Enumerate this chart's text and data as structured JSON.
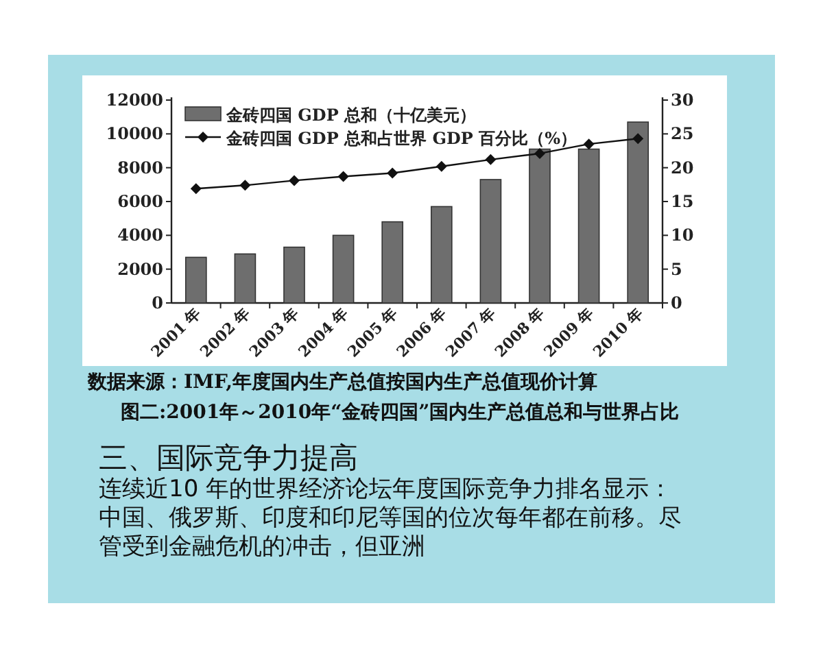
{
  "chart_data": {
    "type": "bar",
    "title": "图二:2001年～2010年“金砖四国”国内生产总值总和与世界占比",
    "categories": [
      "2001 年",
      "2002 年",
      "2003 年",
      "2004 年",
      "2005 年",
      "2006 年",
      "2007 年",
      "2008 年",
      "2009 年",
      "2010 年"
    ],
    "series": [
      {
        "name": "金砖四国 GDP 总和（十亿美元）",
        "color": "#6e6e6e",
        "values": [
          2700,
          2900,
          3300,
          4000,
          4800,
          5700,
          7300,
          9100,
          9100,
          10700
        ]
      },
      {
        "name": "金砖四国 GDP 总和占世界 GDP 百分比（%）",
        "type": "line",
        "axis": "y2",
        "color": "#111111",
        "marker": "diamond",
        "values": [
          16.9,
          17.4,
          18.1,
          18.7,
          19.2,
          20.2,
          21.2,
          22.1,
          23.5,
          24.3
        ]
      }
    ],
    "ylim": [
      0,
      12000
    ],
    "yticks": [
      0,
      2000,
      4000,
      6000,
      8000,
      10000,
      12000
    ],
    "y2lim": [
      0,
      30
    ],
    "y2ticks": [
      0,
      5,
      10,
      15,
      20,
      25,
      30
    ],
    "legend": "top left",
    "annotations": [
      "数据来源：IMF,年度国内生产总值按国内生产总值现价计算",
      "三、国际竞争力提高",
      "连续近10 年的世界经济论坛年度国际竞争力排名显示：中国、俄罗斯、印度和印尼等国的位次每年都在前移。尽管受到金融危机的冲击，但亚洲"
    ]
  }
}
